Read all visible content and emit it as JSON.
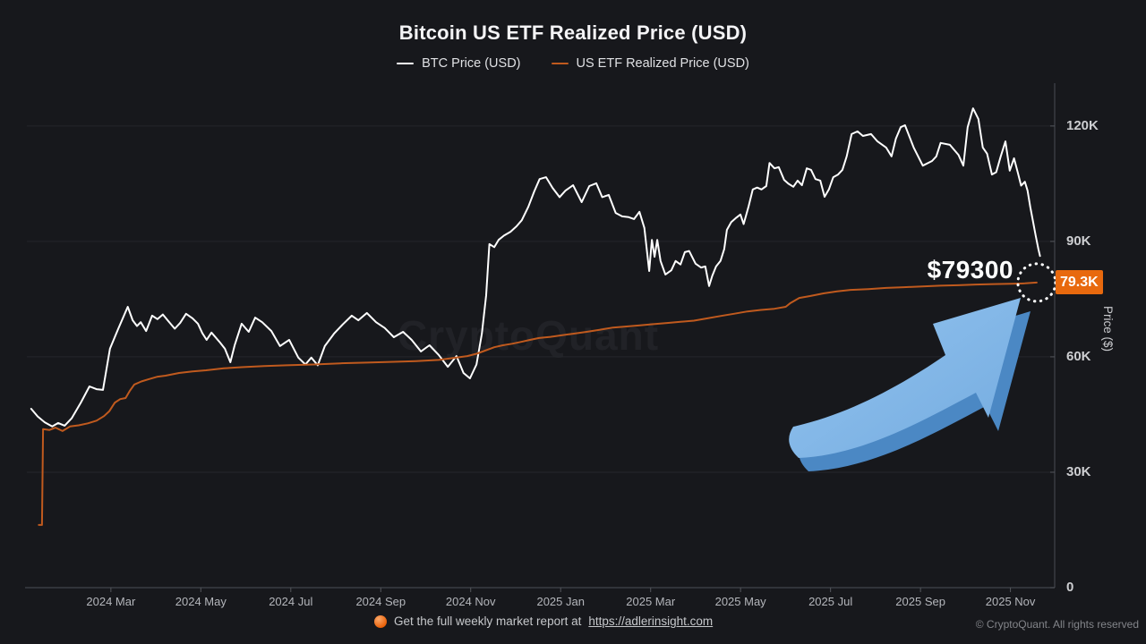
{
  "title": "Bitcoin US ETF Realized Price (USD)",
  "watermark": "CryptoQuant",
  "y_axis_title": "Price ($)",
  "legend": [
    {
      "label": "BTC Price (USD)",
      "color": "#ffffff"
    },
    {
      "label": "US ETF Realized Price (USD)",
      "color": "#c05a1e"
    }
  ],
  "annotation": {
    "price_label": "$79300",
    "badge": "79.3K"
  },
  "footer": {
    "report_text": "Get the full weekly market report at",
    "report_url": "https://adlerinsight.com",
    "copyright": "© CryptoQuant. All rights reserved"
  },
  "colors": {
    "background": "#17181c",
    "grid": "#24262b",
    "axis": "#41444b",
    "tick": "#54565c",
    "btc_line": "#ffffff",
    "etf_line": "#c05a1e",
    "badge_bg": "#e8690e",
    "arrow_front": "#82b7e9",
    "arrow_back": "#4b88c4",
    "label_text": "#cdced1"
  },
  "chart_data": {
    "type": "line",
    "title": "Bitcoin US ETF Realized Price (USD)",
    "xlabel": "",
    "ylabel": "Price ($)",
    "x_unit": "decimal_year",
    "xlim": [
      2024.011,
      2025.902
    ],
    "ylim": [
      0,
      129500
    ],
    "grid": "horizontal",
    "legend_position": "top-center",
    "y_ticks": [
      {
        "v": 0,
        "label": "0"
      },
      {
        "v": 30000,
        "label": "30K"
      },
      {
        "v": 60000,
        "label": "60K"
      },
      {
        "v": 90000,
        "label": "90K"
      },
      {
        "v": 120000,
        "label": "120K"
      }
    ],
    "x_ticks": [
      {
        "t": 2024.1667,
        "label": "2024 Mar"
      },
      {
        "t": 2024.3333,
        "label": "2024 May"
      },
      {
        "t": 2024.5,
        "label": "2024 Jul"
      },
      {
        "t": 2024.6667,
        "label": "2024 Sep"
      },
      {
        "t": 2024.8333,
        "label": "2024 Nov"
      },
      {
        "t": 2025.0,
        "label": "2025 Jan"
      },
      {
        "t": 2025.1667,
        "label": "2025 Mar"
      },
      {
        "t": 2025.3333,
        "label": "2025 May"
      },
      {
        "t": 2025.5,
        "label": "2025 Jul"
      },
      {
        "t": 2025.6667,
        "label": "2025 Sep"
      },
      {
        "t": 2025.8333,
        "label": "2025 Nov"
      }
    ],
    "callout": {
      "value": 79300,
      "text": "$79300",
      "axis_badge": "79.3K"
    },
    "series": [
      {
        "name": "BTC Price (USD)",
        "color": "#ffffff",
        "points": [
          [
            2024.019,
            46500
          ],
          [
            2024.031,
            44500
          ],
          [
            2024.044,
            43000
          ],
          [
            2024.058,
            41900
          ],
          [
            2024.069,
            42800
          ],
          [
            2024.081,
            42100
          ],
          [
            2024.094,
            44000
          ],
          [
            2024.111,
            48100
          ],
          [
            2024.127,
            52300
          ],
          [
            2024.14,
            51600
          ],
          [
            2024.152,
            51400
          ],
          [
            2024.165,
            62100
          ],
          [
            2024.18,
            67200
          ],
          [
            2024.198,
            73000
          ],
          [
            2024.207,
            69500
          ],
          [
            2024.215,
            68000
          ],
          [
            2024.222,
            69000
          ],
          [
            2024.232,
            66700
          ],
          [
            2024.243,
            70700
          ],
          [
            2024.253,
            69800
          ],
          [
            2024.263,
            71000
          ],
          [
            2024.273,
            69300
          ],
          [
            2024.285,
            67300
          ],
          [
            2024.295,
            68800
          ],
          [
            2024.306,
            71200
          ],
          [
            2024.318,
            70000
          ],
          [
            2024.328,
            68600
          ],
          [
            2024.336,
            66200
          ],
          [
            2024.344,
            64400
          ],
          [
            2024.353,
            66300
          ],
          [
            2024.369,
            63700
          ],
          [
            2024.378,
            62100
          ],
          [
            2024.388,
            58600
          ],
          [
            2024.396,
            63000
          ],
          [
            2024.409,
            68600
          ],
          [
            2024.422,
            66500
          ],
          [
            2024.434,
            70200
          ],
          [
            2024.447,
            69000
          ],
          [
            2024.464,
            66700
          ],
          [
            2024.48,
            62800
          ],
          [
            2024.497,
            64400
          ],
          [
            2024.514,
            59800
          ],
          [
            2024.527,
            58000
          ],
          [
            2024.538,
            59800
          ],
          [
            2024.55,
            57800
          ],
          [
            2024.563,
            62800
          ],
          [
            2024.58,
            66000
          ],
          [
            2024.596,
            68400
          ],
          [
            2024.613,
            70700
          ],
          [
            2024.625,
            69500
          ],
          [
            2024.641,
            71400
          ],
          [
            2024.658,
            69000
          ],
          [
            2024.674,
            67500
          ],
          [
            2024.691,
            65100
          ],
          [
            2024.708,
            66500
          ],
          [
            2024.724,
            64400
          ],
          [
            2024.741,
            61400
          ],
          [
            2024.757,
            63000
          ],
          [
            2024.774,
            60500
          ],
          [
            2024.791,
            57400
          ],
          [
            2024.807,
            60200
          ],
          [
            2024.82,
            55800
          ],
          [
            2024.832,
            54400
          ],
          [
            2024.844,
            58000
          ],
          [
            2024.854,
            66000
          ],
          [
            2024.862,
            76000
          ],
          [
            2024.868,
            89300
          ],
          [
            2024.877,
            88500
          ],
          [
            2024.885,
            90400
          ],
          [
            2024.895,
            91500
          ],
          [
            2024.907,
            92500
          ],
          [
            2024.918,
            93900
          ],
          [
            2024.928,
            95500
          ],
          [
            2024.94,
            99000
          ],
          [
            2024.951,
            103000
          ],
          [
            2024.961,
            106200
          ],
          [
            2024.973,
            106700
          ],
          [
            2024.985,
            103900
          ],
          [
            2024.998,
            101500
          ],
          [
            2025.009,
            103200
          ],
          [
            2025.023,
            104600
          ],
          [
            2025.039,
            100200
          ],
          [
            2025.053,
            104400
          ],
          [
            2025.066,
            105100
          ],
          [
            2025.077,
            101500
          ],
          [
            2025.089,
            102100
          ],
          [
            2025.102,
            97400
          ],
          [
            2025.114,
            96500
          ],
          [
            2025.126,
            96300
          ],
          [
            2025.136,
            95800
          ],
          [
            2025.146,
            97700
          ],
          [
            2025.155,
            93500
          ],
          [
            2025.164,
            82300
          ],
          [
            2025.169,
            90400
          ],
          [
            2025.174,
            86000
          ],
          [
            2025.179,
            90400
          ],
          [
            2025.185,
            84900
          ],
          [
            2025.194,
            81400
          ],
          [
            2025.205,
            82500
          ],
          [
            2025.213,
            84900
          ],
          [
            2025.222,
            84000
          ],
          [
            2025.23,
            87200
          ],
          [
            2025.238,
            87500
          ],
          [
            2025.25,
            84200
          ],
          [
            2025.26,
            83200
          ],
          [
            2025.268,
            83500
          ],
          [
            2025.275,
            78400
          ],
          [
            2025.281,
            81100
          ],
          [
            2025.288,
            83500
          ],
          [
            2025.296,
            84900
          ],
          [
            2025.303,
            88000
          ],
          [
            2025.308,
            93000
          ],
          [
            2025.316,
            95000
          ],
          [
            2025.324,
            96000
          ],
          [
            2025.333,
            97000
          ],
          [
            2025.339,
            94500
          ],
          [
            2025.348,
            99000
          ],
          [
            2025.356,
            103500
          ],
          [
            2025.364,
            104000
          ],
          [
            2025.372,
            103500
          ],
          [
            2025.381,
            104400
          ],
          [
            2025.387,
            110400
          ],
          [
            2025.396,
            109000
          ],
          [
            2025.404,
            109300
          ],
          [
            2025.414,
            106000
          ],
          [
            2025.422,
            105000
          ],
          [
            2025.431,
            104200
          ],
          [
            2025.439,
            105800
          ],
          [
            2025.447,
            104600
          ],
          [
            2025.456,
            109000
          ],
          [
            2025.464,
            108600
          ],
          [
            2025.472,
            106200
          ],
          [
            2025.481,
            105800
          ],
          [
            2025.489,
            101600
          ],
          [
            2025.497,
            103500
          ],
          [
            2025.505,
            106700
          ],
          [
            2025.514,
            107400
          ],
          [
            2025.522,
            108600
          ],
          [
            2025.53,
            112100
          ],
          [
            2025.539,
            117900
          ],
          [
            2025.55,
            118600
          ],
          [
            2025.56,
            117400
          ],
          [
            2025.575,
            117900
          ],
          [
            2025.587,
            116000
          ],
          [
            2025.603,
            114400
          ],
          [
            2025.613,
            112100
          ],
          [
            2025.621,
            116700
          ],
          [
            2025.63,
            119700
          ],
          [
            2025.638,
            120200
          ],
          [
            2025.654,
            114400
          ],
          [
            2025.671,
            109700
          ],
          [
            2025.688,
            110900
          ],
          [
            2025.696,
            112100
          ],
          [
            2025.704,
            115600
          ],
          [
            2025.721,
            115100
          ],
          [
            2025.737,
            112500
          ],
          [
            2025.746,
            109700
          ],
          [
            2025.754,
            119700
          ],
          [
            2025.764,
            124600
          ],
          [
            2025.774,
            121800
          ],
          [
            2025.782,
            114400
          ],
          [
            2025.79,
            112800
          ],
          [
            2025.799,
            107400
          ],
          [
            2025.807,
            108000
          ],
          [
            2025.815,
            112000
          ],
          [
            2025.824,
            116000
          ],
          [
            2025.832,
            108400
          ],
          [
            2025.84,
            111600
          ],
          [
            2025.847,
            107900
          ],
          [
            2025.853,
            104500
          ],
          [
            2025.86,
            105500
          ],
          [
            2025.865,
            103200
          ],
          [
            2025.87,
            99000
          ],
          [
            2025.875,
            95300
          ],
          [
            2025.88,
            91600
          ],
          [
            2025.885,
            88000
          ],
          [
            2025.888,
            86200
          ]
        ]
      },
      {
        "name": "US ETF Realized Price (USD)",
        "color": "#c05a1e",
        "points": [
          [
            2024.033,
            16300
          ],
          [
            2024.039,
            16300
          ],
          [
            2024.041,
            41200
          ],
          [
            2024.053,
            41000
          ],
          [
            2024.064,
            41600
          ],
          [
            2024.077,
            40700
          ],
          [
            2024.091,
            41900
          ],
          [
            2024.107,
            42200
          ],
          [
            2024.124,
            42700
          ],
          [
            2024.14,
            43400
          ],
          [
            2024.154,
            44600
          ],
          [
            2024.164,
            45900
          ],
          [
            2024.174,
            48100
          ],
          [
            2024.184,
            49000
          ],
          [
            2024.194,
            49300
          ],
          [
            2024.202,
            51200
          ],
          [
            2024.21,
            52800
          ],
          [
            2024.223,
            53600
          ],
          [
            2024.237,
            54200
          ],
          [
            2024.252,
            54800
          ],
          [
            2024.268,
            55100
          ],
          [
            2024.293,
            55800
          ],
          [
            2024.318,
            56200
          ],
          [
            2024.343,
            56500
          ],
          [
            2024.376,
            57000
          ],
          [
            2024.409,
            57300
          ],
          [
            2024.451,
            57600
          ],
          [
            2024.492,
            57800
          ],
          [
            2024.542,
            58000
          ],
          [
            2024.592,
            58300
          ],
          [
            2024.641,
            58500
          ],
          [
            2024.691,
            58700
          ],
          [
            2024.732,
            58900
          ],
          [
            2024.774,
            59200
          ],
          [
            2024.807,
            59800
          ],
          [
            2024.827,
            60200
          ],
          [
            2024.844,
            60800
          ],
          [
            2024.86,
            61600
          ],
          [
            2024.877,
            62500
          ],
          [
            2024.893,
            63000
          ],
          [
            2024.91,
            63400
          ],
          [
            2024.927,
            63900
          ],
          [
            2024.943,
            64400
          ],
          [
            2024.96,
            64900
          ],
          [
            2024.981,
            65200
          ],
          [
            2025.003,
            65600
          ],
          [
            2025.023,
            66000
          ],
          [
            2025.048,
            66500
          ],
          [
            2025.072,
            67000
          ],
          [
            2025.097,
            67600
          ],
          [
            2025.122,
            67900
          ],
          [
            2025.147,
            68200
          ],
          [
            2025.172,
            68500
          ],
          [
            2025.197,
            68800
          ],
          [
            2025.222,
            69100
          ],
          [
            2025.247,
            69400
          ],
          [
            2025.272,
            70000
          ],
          [
            2025.296,
            70600
          ],
          [
            2025.321,
            71200
          ],
          [
            2025.346,
            71800
          ],
          [
            2025.371,
            72200
          ],
          [
            2025.396,
            72500
          ],
          [
            2025.417,
            73000
          ],
          [
            2025.426,
            74000
          ],
          [
            2025.442,
            75300
          ],
          [
            2025.462,
            75800
          ],
          [
            2025.487,
            76500
          ],
          [
            2025.512,
            77000
          ],
          [
            2025.537,
            77400
          ],
          [
            2025.57,
            77600
          ],
          [
            2025.603,
            77900
          ],
          [
            2025.636,
            78100
          ],
          [
            2025.67,
            78300
          ],
          [
            2025.703,
            78500
          ],
          [
            2025.736,
            78600
          ],
          [
            2025.769,
            78800
          ],
          [
            2025.802,
            78900
          ],
          [
            2025.835,
            79000
          ],
          [
            2025.86,
            79100
          ],
          [
            2025.882,
            79300
          ]
        ]
      }
    ]
  }
}
